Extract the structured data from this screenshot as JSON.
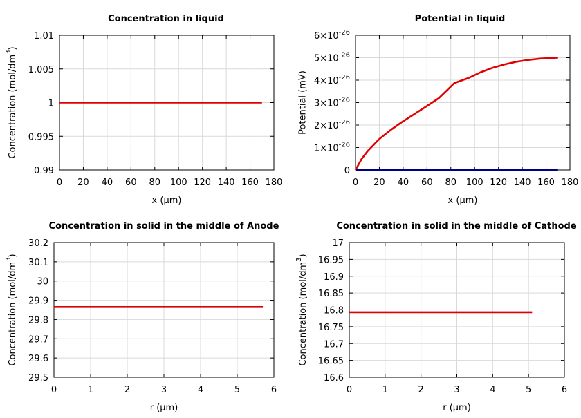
{
  "chart_data": [
    {
      "type": "line",
      "title": "Concentration in liquid",
      "xlabel": "x (μm)",
      "ylabel": "Concentration (mol/dm3)",
      "ylabel_main": "Concentration (mol/dm",
      "ylabel_sup": "3",
      "ylabel_tail": ")",
      "xlim": [
        0,
        180
      ],
      "ylim": [
        0.99,
        1.01
      ],
      "grid": true,
      "x_ticks": [
        0,
        20,
        40,
        60,
        80,
        100,
        120,
        140,
        160,
        180
      ],
      "x_tick_labels": [
        "0",
        "20",
        "40",
        "60",
        "80",
        "100",
        "120",
        "140",
        "160",
        "180"
      ],
      "y_ticks": [
        0.99,
        0.995,
        1.0,
        1.005,
        1.01
      ],
      "y_tick_labels": [
        "0.99",
        "0.995",
        "1",
        "1.005",
        "1.01"
      ],
      "series": [
        {
          "color": "#e00000",
          "x": [
            0,
            170
          ],
          "y": [
            1.0,
            1.0
          ]
        }
      ]
    },
    {
      "type": "line",
      "title": "Potential in liquid",
      "xlabel": "x (μm)",
      "ylabel": "Potential (mV)",
      "xlim": [
        0,
        180
      ],
      "ylim": [
        0,
        6e-26
      ],
      "grid": true,
      "x_ticks": [
        0,
        20,
        40,
        60,
        80,
        100,
        120,
        140,
        160,
        180
      ],
      "x_tick_labels": [
        "0",
        "20",
        "40",
        "60",
        "80",
        "100",
        "120",
        "140",
        "160",
        "180"
      ],
      "y_ticks": [
        0,
        1e-26,
        2e-26,
        3e-26,
        4e-26,
        5e-26,
        6e-26
      ],
      "y_tick_labels": [
        {
          "text": "0",
          "exp": ""
        },
        {
          "text": "1×10",
          "exp": "-26"
        },
        {
          "text": "2×10",
          "exp": "-26"
        },
        {
          "text": "3×10",
          "exp": "-26"
        },
        {
          "text": "4×10",
          "exp": "-26"
        },
        {
          "text": "5×10",
          "exp": "-26"
        },
        {
          "text": "6×10",
          "exp": "-26"
        }
      ],
      "series": [
        {
          "color": "#e00000",
          "x": [
            0,
            5,
            10,
            20,
            30,
            40,
            50,
            60,
            70,
            83,
            95,
            105,
            115,
            125,
            135,
            145,
            155,
            165,
            170
          ],
          "y": [
            0,
            4.8e-27,
            8.3e-27,
            1.38e-26,
            1.8e-26,
            2.17e-26,
            2.51e-26,
            2.85e-26,
            3.2e-26,
            3.87e-26,
            4.1e-26,
            4.35e-26,
            4.55e-26,
            4.7e-26,
            4.82e-26,
            4.9e-26,
            4.96e-26,
            4.99e-26,
            5e-26
          ]
        },
        {
          "color": "#000080",
          "x": [
            0,
            170
          ],
          "y": [
            0,
            0
          ]
        }
      ]
    },
    {
      "type": "line",
      "title": "Concentration in solid in the middle of Anode",
      "xlabel": "r (μm)",
      "ylabel": "Concentration (mol/dm3)",
      "ylabel_main": "Concentration (mol/dm",
      "ylabel_sup": "3",
      "ylabel_tail": ")",
      "xlim": [
        0,
        6
      ],
      "ylim": [
        29.5,
        30.2
      ],
      "grid": true,
      "x_ticks": [
        0,
        1,
        2,
        3,
        4,
        5,
        6
      ],
      "x_tick_labels": [
        "0",
        "1",
        "2",
        "3",
        "4",
        "5",
        "6"
      ],
      "y_ticks": [
        29.5,
        29.6,
        29.7,
        29.8,
        29.9,
        30.0,
        30.1,
        30.2
      ],
      "y_tick_labels": [
        "29.5",
        "29.6",
        "29.7",
        "29.8",
        "29.9",
        "30",
        "30.1",
        "30.2"
      ],
      "series": [
        {
          "color": "#e00000",
          "x": [
            0,
            5.7
          ],
          "y": [
            29.865,
            29.865
          ]
        }
      ]
    },
    {
      "type": "line",
      "title": "Concentration in solid in the middle of Cathode",
      "xlabel": "r (μm)",
      "ylabel": "Concentration (mol/dm3)",
      "ylabel_main": "Concentration (mol/dm",
      "ylabel_sup": "3",
      "ylabel_tail": ")",
      "xlim": [
        0,
        6
      ],
      "ylim": [
        16.6,
        17.0
      ],
      "grid": true,
      "x_ticks": [
        0,
        1,
        2,
        3,
        4,
        5,
        6
      ],
      "x_tick_labels": [
        "0",
        "1",
        "2",
        "3",
        "4",
        "5",
        "6"
      ],
      "y_ticks": [
        16.6,
        16.65,
        16.7,
        16.75,
        16.8,
        16.85,
        16.9,
        16.95,
        17.0
      ],
      "y_tick_labels": [
        "16.6",
        "16.65",
        "16.7",
        "16.75",
        "16.8",
        "16.85",
        "16.9",
        "16.95",
        "17"
      ],
      "series": [
        {
          "color": "#e00000",
          "x": [
            0,
            5.1
          ],
          "y": [
            16.793,
            16.793
          ]
        }
      ]
    }
  ]
}
